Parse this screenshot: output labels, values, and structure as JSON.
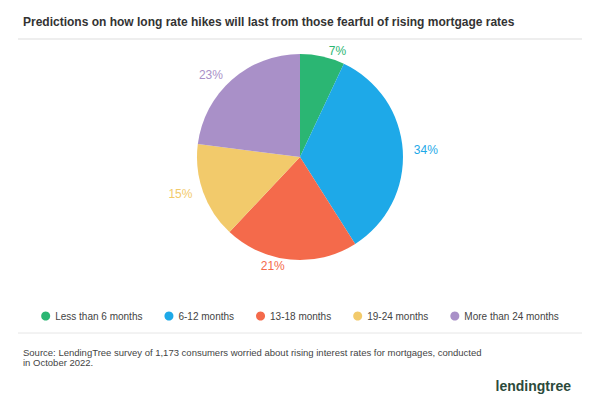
{
  "chart_data": {
    "type": "pie",
    "title": "Predictions on how long rate hikes will last from those fearful of rising mortgage rates",
    "categories": [
      "Less than 6 months",
      "6-12 months",
      "13-18 months",
      "19-24 months",
      "More than 24 months"
    ],
    "values": [
      7,
      34,
      21,
      15,
      23
    ],
    "value_labels": [
      "7%",
      "34%",
      "21%",
      "15%",
      "23%"
    ],
    "colors": [
      "#2bb673",
      "#1ea9e8",
      "#f46a4b",
      "#f2ca6b",
      "#a990c8"
    ],
    "data_labels": true,
    "legend": "bottom",
    "source": "Source: LendingTree survey of 1,173 consumers worried about rising interest rates for mortgages, conducted in October 2022.",
    "credit": "lendingtree"
  }
}
